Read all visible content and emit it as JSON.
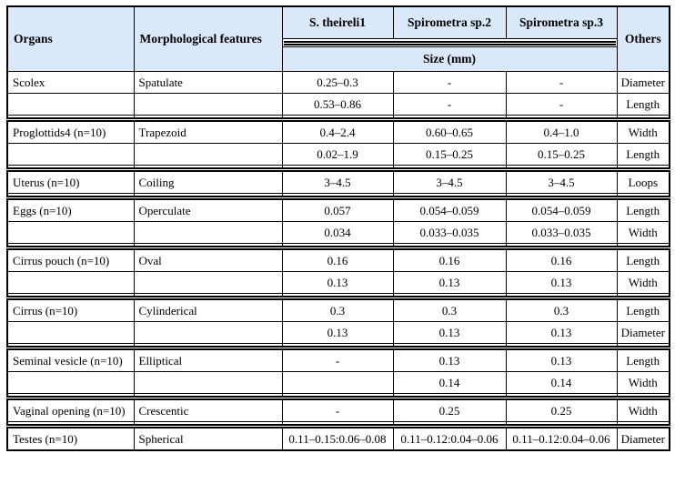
{
  "table": {
    "colors": {
      "header_bg": "#d9e9fa",
      "border": "#000000"
    },
    "header": {
      "organs": "Organs",
      "morphological_features": "Morphological features",
      "species": [
        "S. theireli1",
        "Spirometra sp.2",
        "Spirometra sp.3"
      ],
      "size_label": "Size (mm)",
      "others": "Others"
    },
    "groups": [
      {
        "rows": [
          [
            "Scolex",
            "Spatulate",
            "0.25–0.3",
            "-",
            "-",
            "Diameter"
          ],
          [
            "",
            "",
            "0.53–0.86",
            "-",
            "-",
            "Length"
          ]
        ]
      },
      {
        "rows": [
          [
            "Proglottids4 (n=10)",
            "Trapezoid",
            "0.4–2.4",
            "0.60–0.65",
            "0.4–1.0",
            "Width"
          ],
          [
            "",
            "",
            "0.02–1.9",
            "0.15–0.25",
            "0.15–0.25",
            "Length"
          ]
        ]
      },
      {
        "rows": [
          [
            "Uterus (n=10)",
            "Coiling",
            "3–4.5",
            "3–4.5",
            "3–4.5",
            "Loops"
          ]
        ]
      },
      {
        "rows": [
          [
            "Eggs (n=10)",
            "Operculate",
            "0.057",
            "0.054–0.059",
            "0.054–0.059",
            "Length"
          ],
          [
            "",
            "",
            "0.034",
            "0.033–0.035",
            "0.033–0.035",
            "Width"
          ]
        ]
      },
      {
        "rows": [
          [
            "Cirrus pouch (n=10)",
            "Oval",
            "0.16",
            "0.16",
            "0.16",
            "Length"
          ],
          [
            "",
            "",
            "0.13",
            "0.13",
            "0.13",
            "Width"
          ]
        ]
      },
      {
        "rows": [
          [
            "Cirrus (n=10)",
            "Cylinderical",
            "0.3",
            "0.3",
            "0.3",
            "Length"
          ],
          [
            "",
            "",
            "0.13",
            "0.13",
            "0.13",
            "Diameter"
          ]
        ]
      },
      {
        "rows": [
          [
            "Seminal vesicle (n=10)",
            "Elliptical",
            "-",
            "0.13",
            "0.13",
            "Length"
          ],
          [
            "",
            "",
            "",
            "0.14",
            "0.14",
            "Width"
          ]
        ]
      },
      {
        "rows": [
          [
            "Vaginal opening (n=10)",
            "Crescentic",
            "-",
            "0.25",
            "0.25",
            "Width"
          ]
        ]
      },
      {
        "rows": [
          [
            "Testes (n=10)",
            "Spherical",
            "0.11–0.15:0.06–0.08",
            "0.11–0.12:0.04–0.06",
            "0.11–0.12:0.04–0.06",
            "Diameter"
          ]
        ]
      }
    ]
  }
}
